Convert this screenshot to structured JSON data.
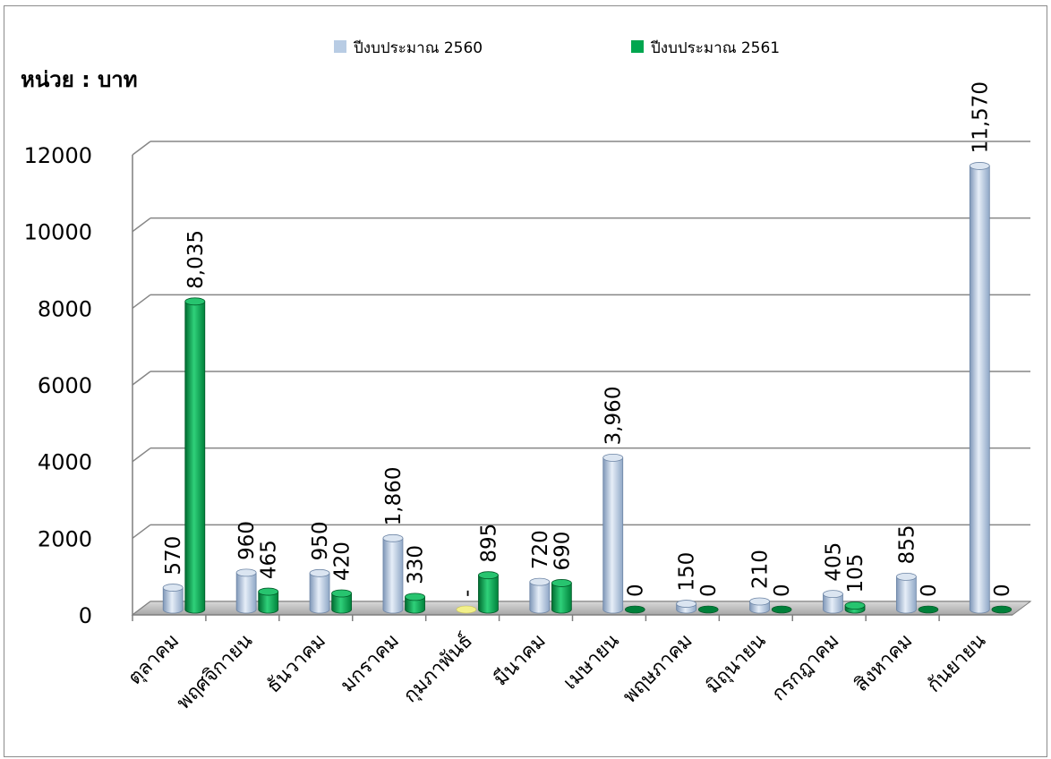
{
  "chart_data": {
    "type": "bar",
    "unit_label": "หน่วย : บาท",
    "categories": [
      "ตุลาคม",
      "พฤศจิกายน",
      "ธันวาคม",
      "มกราคม",
      "กุมภาพันธ์",
      "มีนาคม",
      "เมษายน",
      "พฤษภาคม",
      "มิถุนายน",
      "กรกฎาคม",
      "สิงหาคม",
      "กันยายน"
    ],
    "series": [
      {
        "name": "ปีงบประมาณ 2560",
        "color": "#b8cce4",
        "values": [
          570,
          960,
          950,
          1860,
          0,
          720,
          3960,
          150,
          210,
          405,
          855,
          11570
        ],
        "labels": [
          "570",
          "960",
          "950",
          "1,860",
          "-",
          "720",
          "3,960",
          "150",
          "210",
          "405",
          "855",
          "11,570"
        ]
      },
      {
        "name": "ปีงบประมาณ 2561",
        "color": "#00a64f",
        "values": [
          8035,
          465,
          420,
          330,
          895,
          690,
          0,
          0,
          0,
          105,
          0,
          0
        ],
        "labels": [
          "8,035",
          "465",
          "420",
          "330",
          "895",
          "690",
          "0",
          "0",
          "0",
          "105",
          "0",
          "0"
        ]
      }
    ],
    "yticks": [
      "0",
      "2000",
      "4000",
      "6000",
      "8000",
      "10000",
      "12000"
    ],
    "ylim": [
      0,
      12000
    ],
    "grid": true,
    "legend_position": "top"
  }
}
